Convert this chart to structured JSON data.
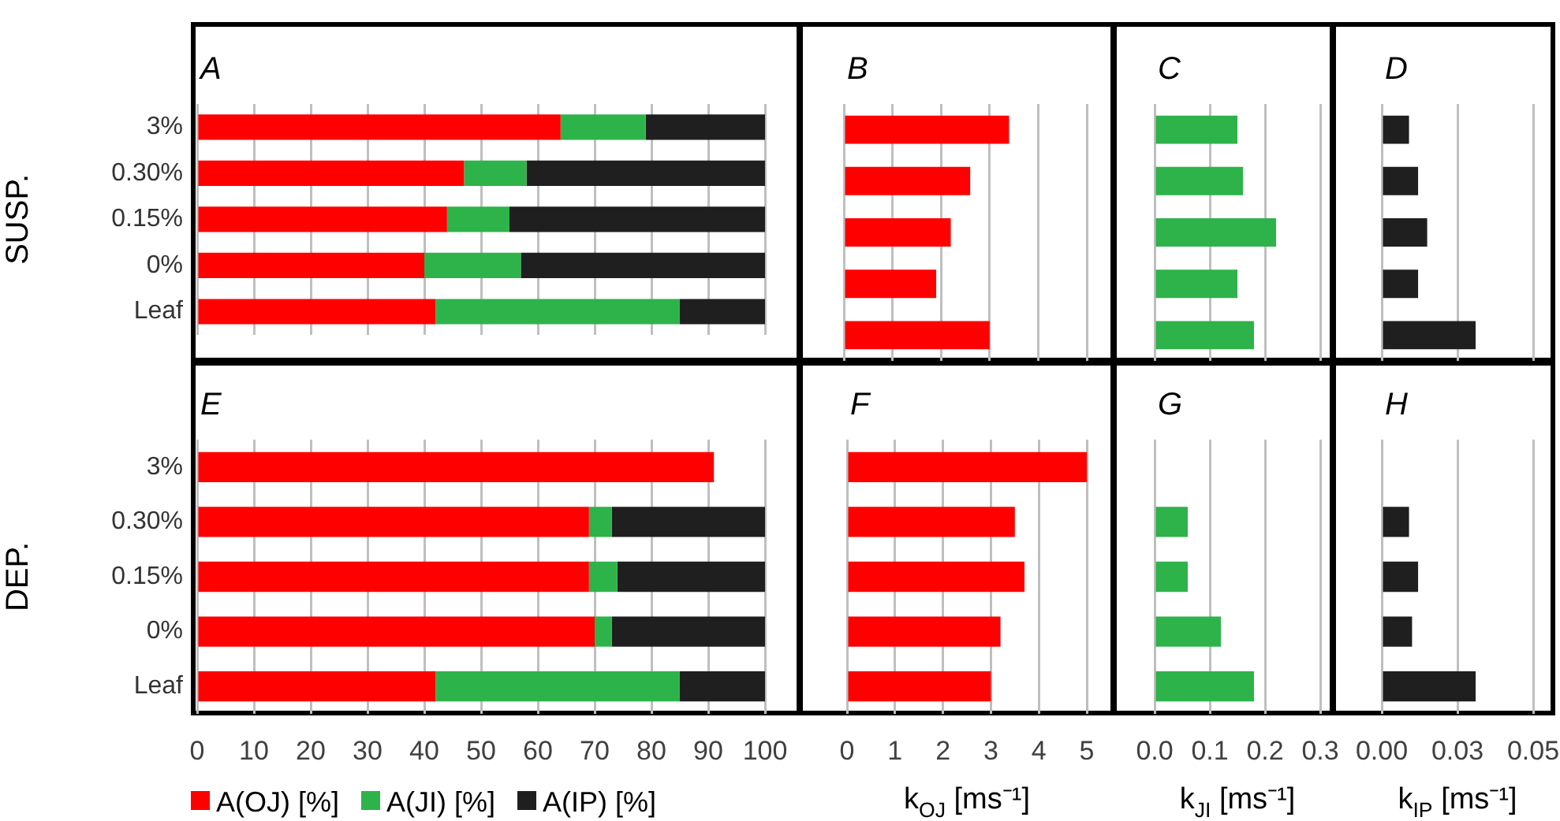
{
  "chart_data": [
    {
      "type": "bar",
      "orientation": "horizontal",
      "stacked": true,
      "title": "A",
      "ylabel": "SUSP.",
      "categories": [
        "3%",
        "0.30%",
        "0.15%",
        "0%",
        "Leaf"
      ],
      "xlim": [
        0,
        100
      ],
      "xticks": [
        {
          "value": 0,
          "label": null
        },
        {
          "value": 10,
          "label": null
        },
        {
          "value": 20,
          "label": null
        },
        {
          "value": 30,
          "label": null
        },
        {
          "value": 40,
          "label": null
        },
        {
          "value": 50,
          "label": null
        },
        {
          "value": 60,
          "label": null
        },
        {
          "value": 70,
          "label": null
        },
        {
          "value": 80,
          "label": null
        },
        {
          "value": 90,
          "label": null
        },
        {
          "value": 100,
          "label": null
        }
      ],
      "grid": "x",
      "tick_labels": "y",
      "series": [
        {
          "color": "#ff0000",
          "values": [
            64,
            47,
            44,
            40,
            42
          ]
        },
        {
          "color": "#2db34a",
          "values": [
            15,
            11,
            11,
            17,
            43
          ]
        },
        {
          "color": "#1f1f1f",
          "values": [
            21,
            42,
            45,
            43,
            15
          ]
        }
      ]
    },
    {
      "type": "bar",
      "orientation": "horizontal",
      "title": "B",
      "categories": [
        null,
        null,
        null,
        null,
        null
      ],
      "xlim": [
        0,
        5
      ],
      "xticks": [
        {
          "value": 0,
          "label": null
        },
        {
          "value": 1,
          "label": null
        },
        {
          "value": 2,
          "label": null
        },
        {
          "value": 3,
          "label": null
        },
        {
          "value": 4,
          "label": null
        },
        {
          "value": 5,
          "label": null
        }
      ],
      "grid": "x",
      "tick_labels": false,
      "series": [
        {
          "color": "#ff0000",
          "values": [
            3.4,
            2.6,
            2.2,
            1.9,
            3.0
          ]
        }
      ]
    },
    {
      "type": "bar",
      "orientation": "horizontal",
      "title": "C",
      "categories": [
        null,
        null,
        null,
        null,
        null
      ],
      "xlim": [
        0,
        0.3
      ],
      "xticks": [
        {
          "value": 0,
          "label": null
        },
        {
          "value": 0.1,
          "label": null
        },
        {
          "value": 0.2,
          "label": null
        },
        {
          "value": 0.3,
          "label": null
        }
      ],
      "grid": "x",
      "tick_labels": false,
      "series": [
        {
          "color": "#2db34a",
          "values": [
            0.15,
            0.16,
            0.22,
            0.15,
            0.18
          ]
        }
      ]
    },
    {
      "type": "bar",
      "orientation": "horizontal",
      "title": "D",
      "categories": [
        null,
        null,
        null,
        null,
        null
      ],
      "xlim": [
        0,
        0.05
      ],
      "xticks": [
        {
          "value": 0,
          "label": null
        },
        {
          "value": 0.025,
          "label": null
        },
        {
          "value": 0.05,
          "label": null
        }
      ],
      "grid": "x",
      "tick_labels": false,
      "series": [
        {
          "color": "#1f1f1f",
          "values": [
            0.009,
            0.012,
            0.015,
            0.012,
            0.031
          ]
        }
      ]
    },
    {
      "type": "bar",
      "orientation": "horizontal",
      "stacked": true,
      "title": "E",
      "ylabel": "DEP.",
      "categories": [
        "3%",
        "0.30%",
        "0.15%",
        "0%",
        "Leaf"
      ],
      "xlim": [
        0,
        100
      ],
      "xticks": [
        0,
        10,
        20,
        30,
        40,
        50,
        60,
        70,
        80,
        90,
        100
      ],
      "grid": "x",
      "legend": "bottom",
      "series": [
        {
          "name": "A(OJ) [%]",
          "color": "#ff0000",
          "values": [
            91,
            69,
            69,
            70,
            42
          ]
        },
        {
          "name": "A(JI) [%]",
          "color": "#2db34a",
          "values": [
            null,
            4,
            5,
            3,
            43
          ]
        },
        {
          "name": "A(IP) [%]",
          "color": "#1f1f1f",
          "values": [
            null,
            27,
            26,
            27,
            15
          ]
        }
      ]
    },
    {
      "type": "bar",
      "orientation": "horizontal",
      "title": "F",
      "xlabel": "k$_{OJ}$ [ms⁻¹]",
      "categories": [
        null,
        null,
        null,
        null,
        null
      ],
      "xlim": [
        0,
        5
      ],
      "xticks": [
        0,
        1,
        2,
        3,
        4,
        5
      ],
      "grid": "x",
      "tick_labels": "x",
      "series": [
        {
          "color": "#ff0000",
          "values": [
            5.0,
            3.5,
            3.7,
            3.2,
            3.0
          ]
        }
      ]
    },
    {
      "type": "bar",
      "orientation": "horizontal",
      "title": "G",
      "xlabel": "k$_{JI}$ [ms⁻¹]",
      "categories": [
        null,
        null,
        null,
        null,
        null
      ],
      "xlim": [
        0,
        0.3
      ],
      "xticks": [
        {
          "value": 0,
          "label": "0.0"
        },
        {
          "value": 0.1,
          "label": "0.1"
        },
        {
          "value": 0.2,
          "label": "0.2"
        },
        {
          "value": 0.3,
          "label": "0.3"
        }
      ],
      "grid": "x",
      "tick_labels": "x",
      "series": [
        {
          "color": "#2db34a",
          "values": [
            null,
            0.06,
            0.06,
            0.12,
            0.18
          ]
        }
      ]
    },
    {
      "type": "bar",
      "orientation": "horizontal",
      "title": "H",
      "xlabel": "k$_{IP}$ [ms⁻¹]",
      "categories": [
        null,
        null,
        null,
        null,
        null
      ],
      "xlim": [
        0,
        0.05
      ],
      "xticks": [
        {
          "value": 0,
          "label": "0.00"
        },
        {
          "value": 0.025,
          "label": "0.03"
        },
        {
          "value": 0.05,
          "label": "0.05"
        }
      ],
      "grid": "x",
      "tick_labels": "x",
      "series": [
        {
          "color": "#1f1f1f",
          "values": [
            null,
            0.009,
            0.012,
            0.01,
            0.031
          ]
        }
      ]
    }
  ]
}
